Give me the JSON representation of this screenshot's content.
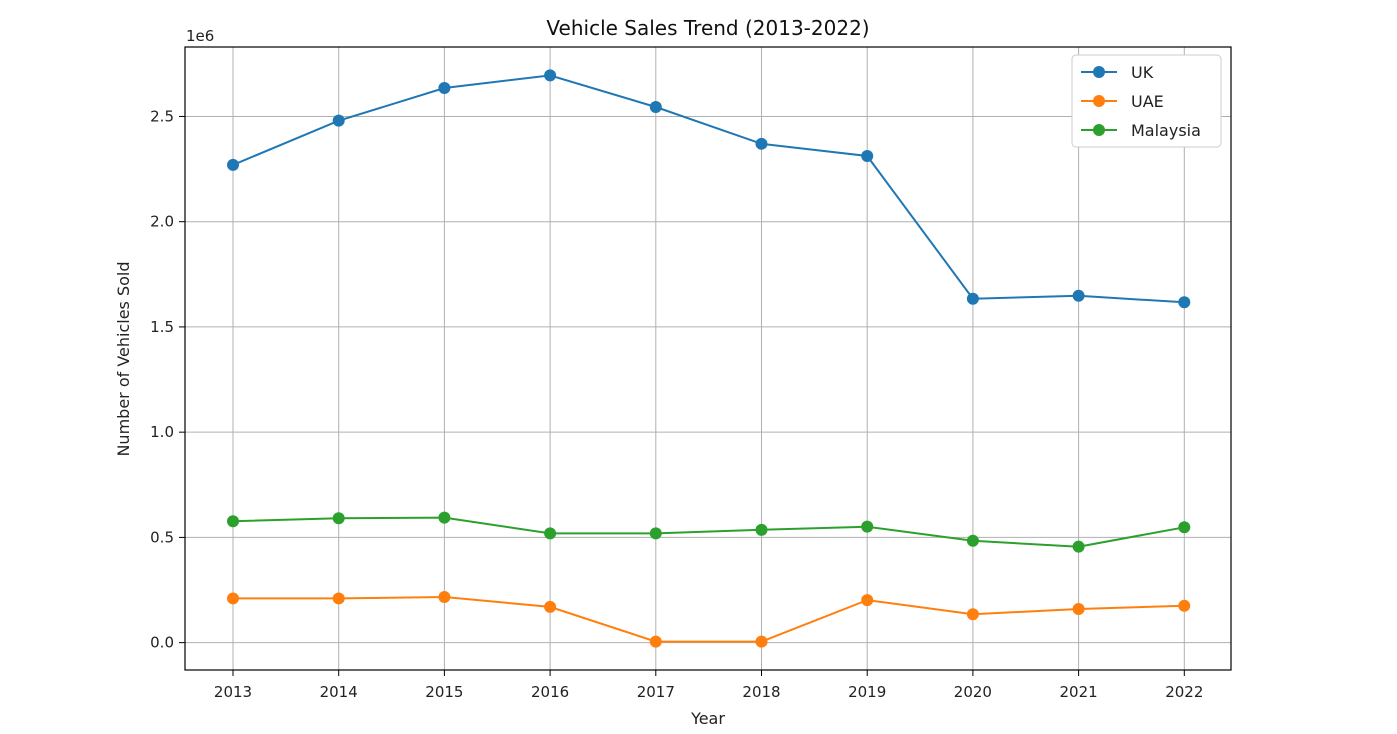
{
  "chart_data": {
    "type": "line",
    "title": "Vehicle Sales Trend (2013-2022)",
    "xlabel": "Year",
    "ylabel": "Number of Vehicles Sold",
    "y_multiplier_label": "1e6",
    "x": [
      "2013",
      "2014",
      "2015",
      "2016",
      "2017",
      "2018",
      "2019",
      "2020",
      "2021",
      "2022"
    ],
    "y_ticks": [
      "0.0",
      "0.5",
      "1.0",
      "1.5",
      "2.0",
      "2.5"
    ],
    "ylim": [
      -130000,
      2830000
    ],
    "grid": true,
    "legend_position": "top-right",
    "series": [
      {
        "name": "UK",
        "color": "#1f77b4",
        "values": [
          2270000,
          2480000,
          2635000,
          2695000,
          2545000,
          2370000,
          2312000,
          1634000,
          1648000,
          1617000
        ]
      },
      {
        "name": "UAE",
        "color": "#ff7f0e",
        "values": [
          210000,
          210000,
          217000,
          170000,
          5000,
          5000,
          202000,
          135000,
          160000,
          175000
        ]
      },
      {
        "name": "Malaysia",
        "color": "#2ca02c",
        "values": [
          577000,
          591000,
          594000,
          519000,
          519000,
          536000,
          551000,
          484000,
          456000,
          548000
        ]
      }
    ]
  }
}
